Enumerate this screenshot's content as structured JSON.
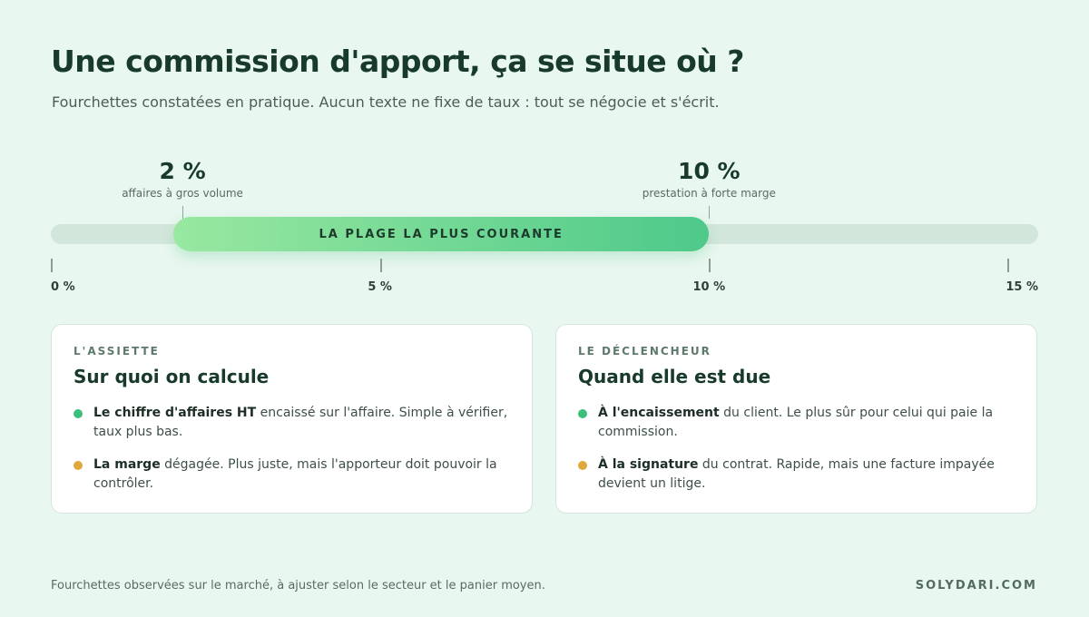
{
  "title": "Une commission d'apport, ça se situe où ?",
  "subtitle": "Fourchettes constatées en pratique. Aucun texte ne fixe de taux : tout se négocie et s'écrit.",
  "scale": {
    "min": 0,
    "max": 15,
    "range": {
      "start": 2,
      "end": 10,
      "label": "LA PLAGE LA PLUS COURANTE"
    },
    "markers": [
      {
        "value": 2,
        "value_label": "2 %",
        "caption": "affaires à gros volume"
      },
      {
        "value": 10,
        "value_label": "10 %",
        "caption": "prestation à forte marge"
      }
    ],
    "ticks": [
      {
        "value": 0,
        "label": "0 %"
      },
      {
        "value": 5,
        "label": "5 %"
      },
      {
        "value": 10,
        "label": "10 %"
      },
      {
        "value": 15,
        "label": "15 %"
      }
    ]
  },
  "cards": [
    {
      "eyebrow": "L'ASSIETTE",
      "title": "Sur quoi on calcule",
      "items": [
        {
          "lead": "Le chiffre d'affaires HT",
          "text": " encaissé sur l'affaire. Simple à vérifier, taux plus bas.",
          "dot_color": "#3cbf78"
        },
        {
          "lead": "La marge",
          "text": " dégagée. Plus juste, mais l'apporteur doit pouvoir la contrôler.",
          "dot_color": "#e0a83a"
        }
      ]
    },
    {
      "eyebrow": "LE DÉCLENCHEUR",
      "title": "Quand elle est due",
      "items": [
        {
          "lead": "À l'encaissement",
          "text": " du client. Le plus sûr pour celui qui paie la commission.",
          "dot_color": "#3cbf78"
        },
        {
          "lead": "À la signature",
          "text": " du contrat. Rapide, mais une facture impayée devient un litige.",
          "dot_color": "#e0a83a"
        }
      ]
    }
  ],
  "footnote": "Fourchettes observées sur le marché, à ajuster selon le secteur et le panier moyen.",
  "brand": "SOLYDARI.COM"
}
